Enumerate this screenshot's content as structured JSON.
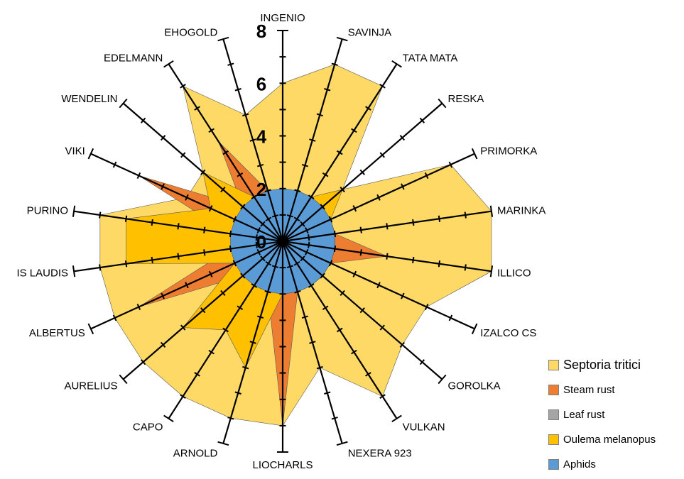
{
  "chart_data": {
    "type": "radar",
    "categories": [
      "INGENIO",
      "SAVINJA",
      "TATA MATA",
      "RESKA",
      "PRIMORKA",
      "MARINKA",
      "ILLICO",
      "IZALCO CS",
      "GOROLKA",
      "VULKAN",
      "NEXERA 923",
      "LIOCHARLS",
      "ARNOLD",
      "CAPO",
      "AURELIUS",
      "ALBERTUS",
      "IS LAUDIS",
      "PURINO",
      "VIKI",
      "WENDELIN",
      "EDELMANN",
      "EHOGOLD"
    ],
    "radial_axis": {
      "min": 0,
      "max": 8,
      "major_ticks": [
        0,
        2,
        4,
        6,
        8
      ]
    },
    "series": [
      {
        "name": "Septoria tritici",
        "color": "#FFD966",
        "values": [
          6,
          7,
          7,
          3,
          7,
          8,
          8,
          6,
          6,
          7,
          5,
          7,
          7,
          7,
          7,
          7,
          7,
          7,
          4,
          4,
          7,
          5
        ]
      },
      {
        "name": "Steam rust",
        "color": "#ED7D31",
        "values": [
          1.5,
          1.5,
          1.5,
          1.5,
          2,
          2,
          4,
          2,
          2,
          2,
          2,
          7,
          2,
          2,
          2,
          6,
          2,
          2,
          6,
          2,
          4.5,
          2
        ]
      },
      {
        "name": "Leaf rust",
        "color": "#A5A5A5",
        "values": [
          1,
          1,
          1,
          1,
          1,
          1,
          1,
          1,
          1,
          1,
          1,
          1,
          1,
          1,
          1,
          2,
          2,
          2,
          2,
          2,
          1,
          1
        ]
      },
      {
        "name": "Oulema melanopus",
        "color": "#FFC000",
        "values": [
          2,
          2,
          2,
          3,
          2,
          2,
          2,
          2,
          2,
          2,
          2,
          2,
          5,
          4,
          5,
          2,
          6,
          6,
          3,
          4,
          2,
          2
        ]
      },
      {
        "name": "Aphids",
        "color": "#5B9BD5",
        "values": [
          2,
          2,
          2,
          2,
          2,
          2,
          2,
          2,
          2,
          2,
          2,
          2,
          2,
          2,
          2,
          2,
          2,
          2,
          2,
          2,
          2,
          2
        ]
      }
    ]
  }
}
